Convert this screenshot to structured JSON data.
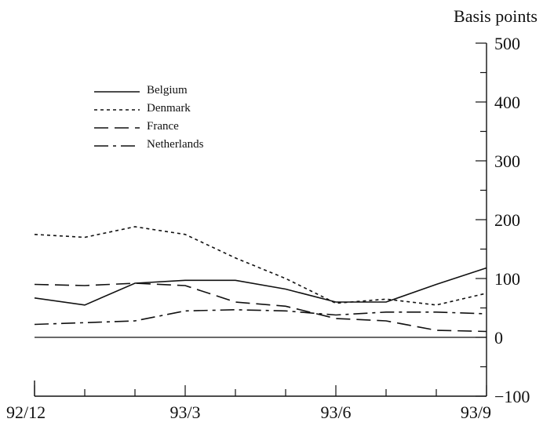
{
  "chart_data": {
    "type": "line",
    "title": "",
    "xlabel": "",
    "ylabel": "Basis points",
    "y_axis_position": "right",
    "ylim": [
      -100,
      500
    ],
    "yticks": [
      -100,
      0,
      100,
      200,
      300,
      400,
      500
    ],
    "ytick_labels": [
      "−100",
      "0",
      "100",
      "200",
      "300",
      "400",
      "500"
    ],
    "x_labels": [
      "92/12",
      "93/3",
      "93/6",
      "93/9"
    ],
    "x": [
      "92/12",
      "93/1",
      "93/2",
      "93/3",
      "93/4",
      "93/5",
      "93/6",
      "93/7",
      "93/8",
      "93/9"
    ],
    "zero_line": true,
    "grid": false,
    "legend_position": "top-left",
    "series": [
      {
        "name": "Belgium",
        "style": "solid",
        "values": [
          67,
          55,
          92,
          97,
          97,
          82,
          60,
          60,
          90,
          118
        ]
      },
      {
        "name": "Denmark",
        "style": "dotted",
        "values": [
          175,
          170,
          188,
          175,
          135,
          100,
          58,
          65,
          55,
          75
        ]
      },
      {
        "name": "France",
        "style": "dashed",
        "values": [
          90,
          88,
          92,
          88,
          60,
          53,
          32,
          28,
          12,
          10
        ]
      },
      {
        "name": "Netherlands",
        "style": "dash-dot",
        "values": [
          22,
          25,
          28,
          45,
          47,
          45,
          38,
          43,
          43,
          40
        ]
      }
    ]
  }
}
